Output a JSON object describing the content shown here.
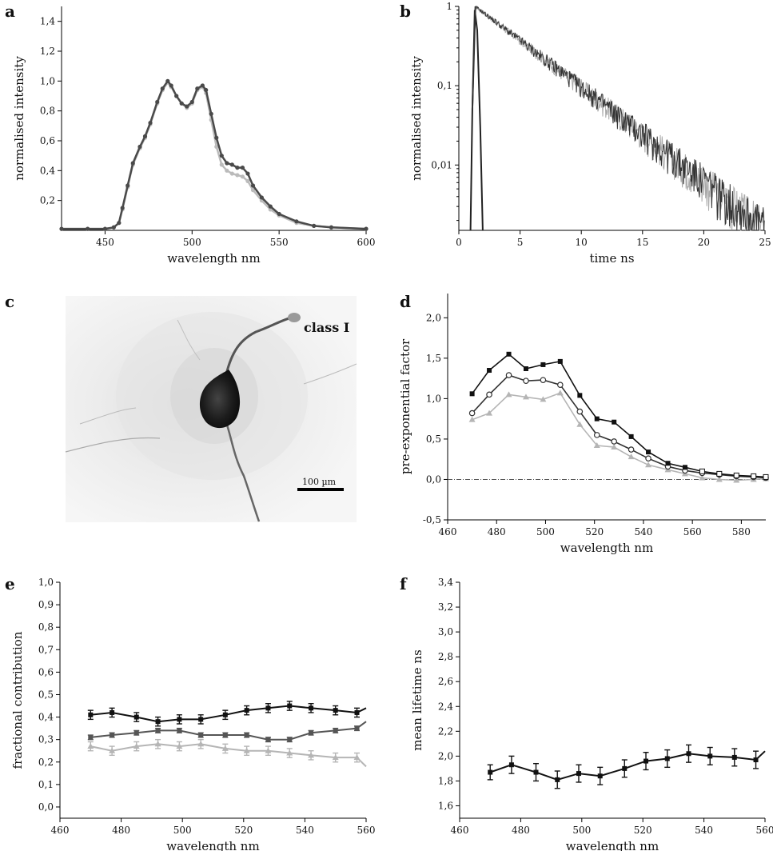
{
  "figure": {
    "panel_labels": [
      "a",
      "b",
      "c",
      "d",
      "e",
      "f"
    ],
    "image_panel": {
      "label": "class I",
      "scale_bar": "100 µm"
    }
  },
  "chart_data": [
    {
      "panel": "a",
      "type": "line",
      "xlabel": "wavelength nm",
      "ylabel": "normalised intensity",
      "xlim": [
        425,
        600
      ],
      "ylim": [
        0,
        1.5
      ],
      "xticks": [
        450,
        500,
        550,
        600
      ],
      "xtick_labels": [
        "450",
        "500",
        "550",
        "600"
      ],
      "yticks": [
        0.2,
        0.4,
        0.6,
        0.8,
        1.0,
        1.2,
        1.4
      ],
      "ytick_labels": [
        "0,2",
        "0,4",
        "0,6",
        "0,8",
        "1,0",
        "1,2",
        "1,4"
      ],
      "colors": [
        "#4a4a4a",
        "#bbbbbb"
      ],
      "series": [
        {
          "x": [
            425,
            440,
            450,
            455,
            458,
            460,
            463,
            466,
            470,
            473,
            476,
            480,
            483,
            486,
            488,
            491,
            494,
            497,
            500,
            503,
            506,
            508,
            511,
            514,
            517,
            520,
            523,
            526,
            529,
            532,
            535,
            540,
            545,
            550,
            560,
            570,
            580,
            600
          ],
          "y": [
            0.01,
            0.01,
            0.01,
            0.02,
            0.05,
            0.15,
            0.3,
            0.45,
            0.56,
            0.63,
            0.72,
            0.86,
            0.95,
            1.0,
            0.97,
            0.9,
            0.85,
            0.83,
            0.86,
            0.95,
            0.97,
            0.94,
            0.78,
            0.62,
            0.5,
            0.45,
            0.44,
            0.42,
            0.42,
            0.38,
            0.3,
            0.22,
            0.16,
            0.11,
            0.06,
            0.03,
            0.02,
            0.01
          ]
        },
        {
          "x": [
            425,
            440,
            450,
            455,
            458,
            460,
            463,
            466,
            470,
            473,
            476,
            480,
            483,
            486,
            488,
            491,
            494,
            497,
            500,
            503,
            506,
            508,
            511,
            514,
            517,
            520,
            523,
            526,
            529,
            532,
            535,
            540,
            545,
            550,
            560,
            570,
            580,
            600
          ],
          "y": [
            0.01,
            0.01,
            0.01,
            0.02,
            0.05,
            0.14,
            0.29,
            0.44,
            0.55,
            0.62,
            0.71,
            0.85,
            0.94,
            0.99,
            0.96,
            0.9,
            0.85,
            0.82,
            0.85,
            0.94,
            0.96,
            0.92,
            0.74,
            0.56,
            0.44,
            0.4,
            0.38,
            0.37,
            0.36,
            0.33,
            0.27,
            0.2,
            0.14,
            0.1,
            0.05,
            0.03,
            0.02,
            0.01
          ]
        }
      ]
    },
    {
      "panel": "b",
      "type": "line",
      "xlabel": "time ns",
      "ylabel": "normalised intensity",
      "scale_y": "log",
      "xlim": [
        0,
        25
      ],
      "ylim": [
        0.0015,
        1.0
      ],
      "xticks": [
        0,
        5,
        10,
        15,
        20,
        25
      ],
      "xtick_labels": [
        "0",
        "5",
        "10",
        "15",
        "20",
        "25"
      ],
      "yticks": [
        0.01,
        0.1,
        1
      ],
      "ytick_labels": [
        "0,01",
        "0,1",
        "1"
      ],
      "colors": [
        "#333333",
        "#aaaaaa"
      ],
      "irf": {
        "x": [
          0.95,
          1.1,
          1.3,
          1.5,
          1.75,
          1.95
        ],
        "y": [
          0.0015,
          0.05,
          0.9,
          0.5,
          0.03,
          0.0015
        ]
      },
      "decay": {
        "peak_x": 1.35,
        "lifetime_ns": 3.7,
        "end_x": 25
      }
    },
    {
      "panel": "d",
      "type": "line",
      "xlabel": "wavelength nm",
      "ylabel": "pre-exponential factor",
      "xlim": [
        460,
        590
      ],
      "ylim": [
        -0.5,
        2.3
      ],
      "xticks": [
        460,
        480,
        500,
        520,
        540,
        560,
        580
      ],
      "xtick_labels": [
        "460",
        "480",
        "500",
        "520",
        "540",
        "560",
        "580"
      ],
      "yticks": [
        -0.5,
        0.0,
        0.5,
        1.0,
        1.5,
        2.0
      ],
      "ytick_labels": [
        "-0,5",
        "0,0",
        "0,5",
        "1,0",
        "1,5",
        "2,0"
      ],
      "zero_line": true,
      "x": [
        470,
        477,
        485,
        492,
        499,
        506,
        514,
        521,
        528,
        535,
        542,
        550,
        557,
        564,
        571,
        578,
        585,
        590
      ],
      "series": [
        {
          "marker": "filled-square",
          "color": "#111111",
          "values": [
            1.06,
            1.35,
            1.55,
            1.37,
            1.42,
            1.46,
            1.04,
            0.75,
            0.71,
            0.53,
            0.34,
            0.2,
            0.15,
            0.1,
            0.07,
            0.05,
            0.04,
            0.03
          ]
        },
        {
          "marker": "open-circle",
          "color": "#333333",
          "values": [
            0.82,
            1.05,
            1.29,
            1.22,
            1.23,
            1.17,
            0.84,
            0.55,
            0.47,
            0.37,
            0.26,
            0.16,
            0.11,
            0.08,
            0.06,
            0.04,
            0.03,
            0.02
          ]
        },
        {
          "marker": "triangle",
          "color": "#b5b5b5",
          "values": [
            0.74,
            0.82,
            1.05,
            1.02,
            0.99,
            1.07,
            0.68,
            0.42,
            0.4,
            0.28,
            0.18,
            0.12,
            0.07,
            0.02,
            0.0,
            -0.01,
            0.0,
            0.01
          ]
        }
      ]
    },
    {
      "panel": "e",
      "type": "line",
      "xlabel": "wavelength nm",
      "ylabel": "fractional contribution",
      "xlim": [
        460,
        560
      ],
      "ylim": [
        -0.05,
        1.0
      ],
      "xticks": [
        460,
        480,
        500,
        520,
        540,
        560
      ],
      "xtick_labels": [
        "460",
        "480",
        "500",
        "520",
        "540",
        "560"
      ],
      "yticks": [
        0.0,
        0.1,
        0.2,
        0.3,
        0.4,
        0.5,
        0.6,
        0.7,
        0.8,
        0.9,
        1.0
      ],
      "ytick_labels": [
        "0,0",
        "0,1",
        "0,2",
        "0,3",
        "0,4",
        "0,5",
        "0,6",
        "0,7",
        "0,8",
        "0,9",
        "1,0"
      ],
      "x": [
        470,
        477,
        485,
        492,
        499,
        506,
        514,
        521,
        528,
        535,
        542,
        550,
        557
      ],
      "series": [
        {
          "color": "#111111",
          "marker": "filled-square",
          "values": [
            0.41,
            0.42,
            0.4,
            0.38,
            0.39,
            0.39,
            0.41,
            0.43,
            0.44,
            0.45,
            0.44,
            0.43,
            0.42
          ],
          "errors": [
            0.02,
            0.02,
            0.02,
            0.02,
            0.02,
            0.02,
            0.02,
            0.02,
            0.02,
            0.02,
            0.02,
            0.02,
            0.02
          ],
          "end": [
            560,
            0.44
          ]
        },
        {
          "color": "#555555",
          "marker": "filled-square",
          "values": [
            0.31,
            0.32,
            0.33,
            0.34,
            0.34,
            0.32,
            0.32,
            0.32,
            0.3,
            0.3,
            0.33,
            0.34,
            0.35
          ],
          "errors": [
            0.01,
            0.01,
            0.01,
            0.01,
            0.01,
            0.01,
            0.01,
            0.01,
            0.01,
            0.01,
            0.01,
            0.01,
            0.01
          ],
          "end": [
            560,
            0.38
          ]
        },
        {
          "color": "#b5b5b5",
          "marker": "triangle",
          "values": [
            0.27,
            0.25,
            0.27,
            0.28,
            0.27,
            0.28,
            0.26,
            0.25,
            0.25,
            0.24,
            0.23,
            0.22,
            0.22
          ],
          "errors": [
            0.02,
            0.02,
            0.02,
            0.02,
            0.02,
            0.02,
            0.02,
            0.02,
            0.02,
            0.02,
            0.02,
            0.02,
            0.02
          ],
          "end": [
            560,
            0.18
          ]
        }
      ]
    },
    {
      "panel": "f",
      "type": "line",
      "xlabel": "wavelength nm",
      "ylabel": "mean lifetime ns",
      "xlim": [
        460,
        560
      ],
      "ylim": [
        1.5,
        3.4
      ],
      "xticks": [
        460,
        480,
        500,
        520,
        540,
        560
      ],
      "xtick_labels": [
        "460",
        "480",
        "500",
        "520",
        "540",
        "560"
      ],
      "yticks": [
        1.6,
        1.8,
        2.0,
        2.2,
        2.4,
        2.6,
        2.8,
        3.0,
        3.2,
        3.4
      ],
      "ytick_labels": [
        "1,6",
        "1,8",
        "2,0",
        "2,2",
        "2,4",
        "2,6",
        "2,8",
        "3,0",
        "3,2",
        "3,4"
      ],
      "x": [
        470,
        477,
        485,
        492,
        499,
        506,
        514,
        521,
        528,
        535,
        542,
        550,
        557
      ],
      "series": [
        {
          "color": "#111111",
          "marker": "filled-square",
          "values": [
            1.87,
            1.93,
            1.87,
            1.81,
            1.86,
            1.84,
            1.9,
            1.96,
            1.98,
            2.02,
            2.0,
            1.99,
            1.97
          ],
          "errors": [
            0.06,
            0.07,
            0.07,
            0.07,
            0.07,
            0.07,
            0.07,
            0.07,
            0.07,
            0.07,
            0.07,
            0.07,
            0.07
          ],
          "end": [
            560,
            2.04
          ]
        }
      ]
    }
  ]
}
